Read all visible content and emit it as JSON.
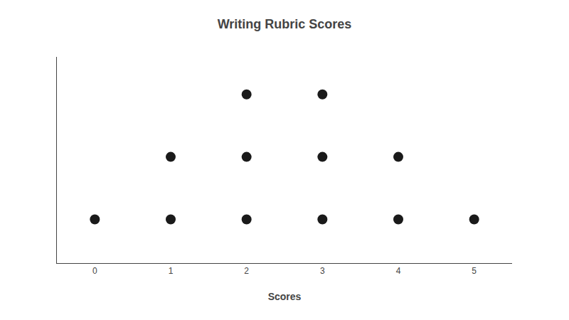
{
  "chart_data": {
    "type": "dot",
    "title": "Writing Rubric Scores",
    "xlabel": "Scores",
    "x": [
      0,
      1,
      2,
      3,
      4,
      5
    ],
    "values": [
      1,
      2,
      3,
      3,
      2,
      1
    ],
    "color": "#1a1a1a",
    "marker": "circle",
    "xlim": [
      -0.5,
      5.5
    ],
    "xticks": [
      0,
      1,
      2,
      3,
      4,
      5
    ],
    "ylim": [
      0.3,
      3.6
    ],
    "grid": false,
    "legend": false,
    "tick_labels": "x"
  }
}
